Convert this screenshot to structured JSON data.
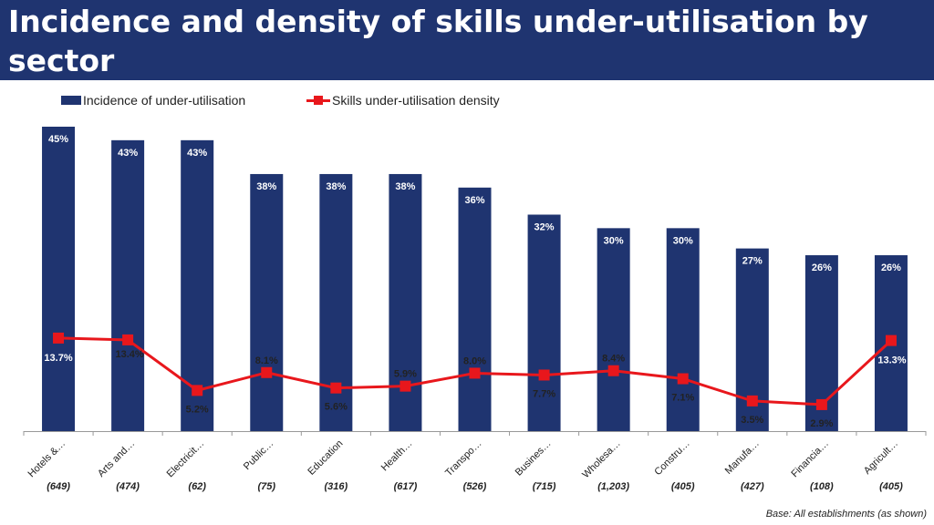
{
  "header": {
    "title": "Incidence and density of skills under-utilisation by sector"
  },
  "legend": {
    "bar_label": "Incidence of under-utilisation",
    "line_label": "Skills under-utilisation density"
  },
  "footer": {
    "base_note": "Base: All establishments (as shown)"
  },
  "colors": {
    "header_bg": "#1f3470",
    "bar": "#1f3470",
    "line": "#e8171c"
  },
  "chart_data": {
    "type": "bar",
    "categories": [
      "Hotels &…",
      "Arts and…",
      "Electricit…",
      "Public…",
      "Education",
      "Health…",
      "Transpo…",
      "Busines…",
      "Wholesa…",
      "Constru…",
      "Manufa…",
      "Financia…",
      "Agricult…"
    ],
    "bases": [
      "(649)",
      "(474)",
      "(62)",
      "(75)",
      "(316)",
      "(617)",
      "(526)",
      "(715)",
      "(1,203)",
      "(405)",
      "(427)",
      "(108)",
      "(405)"
    ],
    "series": [
      {
        "name": "Incidence of under-utilisation",
        "type": "bar",
        "values": [
          45,
          43,
          43,
          38,
          38,
          38,
          36,
          32,
          30,
          30,
          27,
          26,
          26
        ],
        "labels": [
          "45%",
          "43%",
          "43%",
          "38%",
          "38%",
          "38%",
          "36%",
          "32%",
          "30%",
          "30%",
          "27%",
          "26%",
          "26%"
        ]
      },
      {
        "name": "Skills under-utilisation density",
        "type": "line",
        "values": [
          13.7,
          13.4,
          5.2,
          8.1,
          5.6,
          5.9,
          8.0,
          7.7,
          8.4,
          7.1,
          3.5,
          2.9,
          13.3
        ],
        "labels": [
          "13.7%",
          "13.4%",
          "5.2%",
          "8.1%",
          "5.6%",
          "5.9%",
          "8.0%",
          "7.7%",
          "8.4%",
          "7.1%",
          "3.5%",
          "2.9%",
          "13.3%"
        ]
      }
    ],
    "ylim_bar": [
      0,
      45
    ],
    "ylim_line": [
      -1.4,
      48
    ],
    "grid": false,
    "legend_position": "top-left"
  }
}
